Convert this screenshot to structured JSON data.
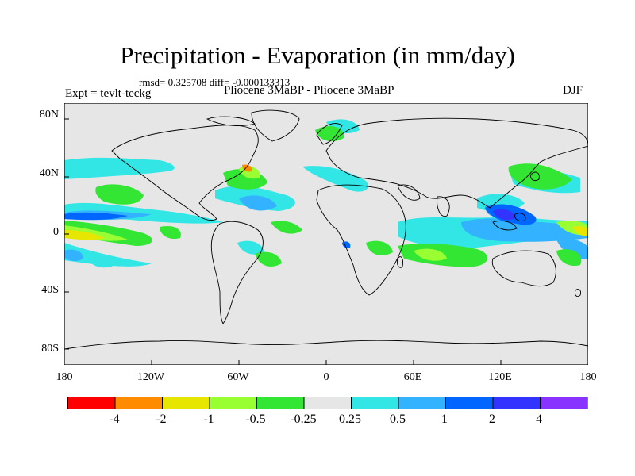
{
  "title": "Precipitation - Evaporation (in mm/day)",
  "stats": "rmsd= 0.325708 diff= -0.000133313",
  "experiment": "Expt = tevlt-teckg",
  "comparison": "Pliocene   3MaBP - Pliocene   3MaBP",
  "season": "DJF",
  "lat_labels": [
    "80N",
    "40N",
    "0",
    "40S",
    "80S"
  ],
  "lon_labels": [
    "180",
    "120W",
    "60W",
    "0",
    "60E",
    "120E",
    "180"
  ],
  "colorbar": {
    "labels": [
      "-4",
      "-2",
      "-1",
      "-0.5",
      "-0.25",
      "0.25",
      "0.5",
      "1",
      "2",
      "4"
    ],
    "colors": [
      "#ff0000",
      "#ff8c00",
      "#e6e600",
      "#99ff33",
      "#33e633",
      "#e6e6e6",
      "#33e6e6",
      "#33b3ff",
      "#0066ff",
      "#3333ff",
      "#8833ff"
    ]
  },
  "colors": {
    "missing": "#e6e6e6",
    "coast": "#000000"
  }
}
